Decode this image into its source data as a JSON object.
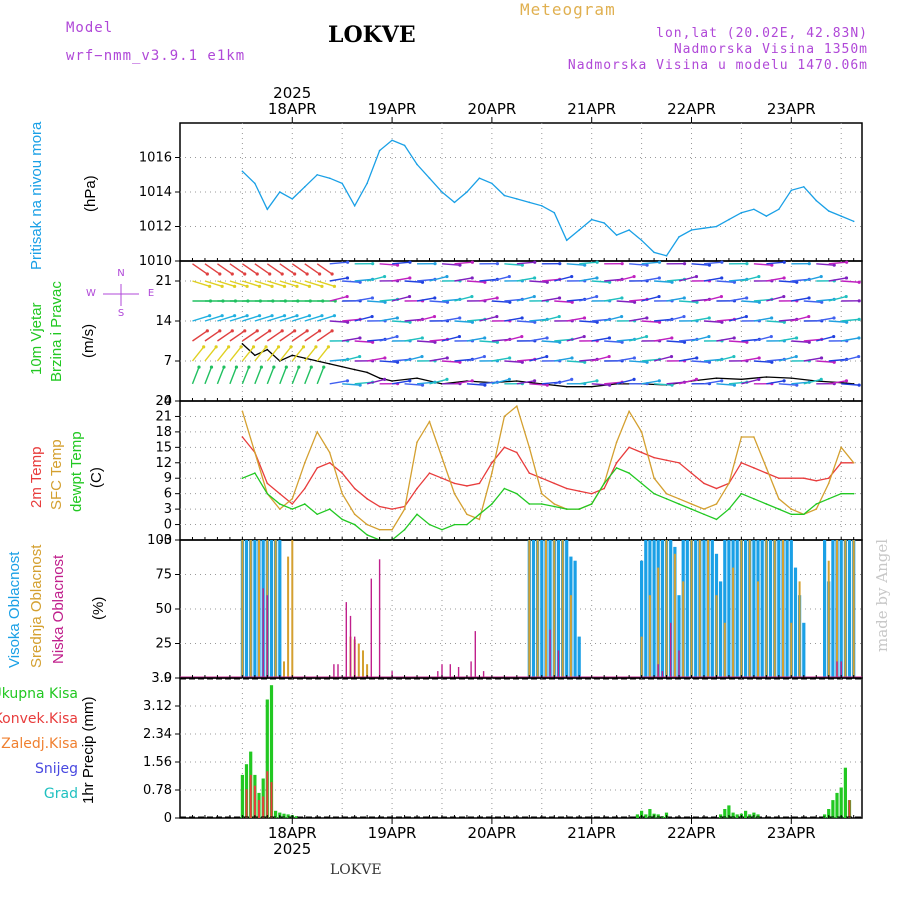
{
  "header": {
    "model_label": "Model",
    "model_name": "wrf−nmm_v3.9.1  e1km",
    "station": "LOKVE",
    "meteogram": "Meteogram",
    "lonlat": "lon,lat (20.02E, 42.83N)",
    "altitude": "Nadmorska Visina 1350m",
    "model_altitude": "Nadmorska Visina u modelu 1470.06m",
    "watermark": "made by Angel",
    "bottom_station": "LOKVE"
  },
  "colors": {
    "pressure": "#1aa0e6",
    "temp2m": "#e83c3c",
    "sfc": "#d4a030",
    "dewpt": "#22c822",
    "high_cloud": "#1aa0e6",
    "mid_cloud": "#d4a030",
    "low_cloud": "#c0208c",
    "total_precip": "#22c822",
    "conv_precip": "#e83c3c",
    "frozen_precip": "#f08030",
    "snow": "#4848e0",
    "hail": "#20c0c0",
    "header_purple": "#b048d8",
    "header_gold": "#e0b050"
  },
  "axis": {
    "year": "2025",
    "dates": [
      "18APR",
      "19APR",
      "20APR",
      "21APR",
      "22APR",
      "23APR"
    ]
  },
  "chart_data": [
    {
      "type": "line",
      "panel": "pressure",
      "title_lines": [
        "Pritisak na nivou mora"
      ],
      "ylabel": "(hPa)",
      "ylim": [
        1010,
        1018
      ],
      "yticks": [
        1010,
        1012,
        1014,
        1016
      ],
      "x_unit": "hours from 2025-04-17 12 UTC",
      "series": [
        {
          "x": [
            0,
            3,
            6,
            9,
            12,
            15,
            18,
            21,
            24,
            27,
            30,
            33,
            36,
            39,
            42,
            45,
            48,
            51,
            54,
            57,
            60,
            63,
            66,
            69,
            72,
            75,
            78,
            81,
            84,
            87,
            90,
            93,
            96,
            99,
            102,
            105,
            108,
            111,
            114,
            117,
            120,
            123,
            126,
            129,
            132,
            135,
            138,
            141,
            144,
            147
          ],
          "values": [
            1015.2,
            1014.5,
            1013.0,
            1014.0,
            1013.6,
            1014.3,
            1015.0,
            1014.8,
            1014.5,
            1013.2,
            1014.5,
            1016.4,
            1017.0,
            1016.7,
            1015.6,
            1014.8,
            1014.0,
            1013.4,
            1014.0,
            1014.8,
            1014.5,
            1013.8,
            1013.6,
            1013.4,
            1013.2,
            1012.8,
            1011.2,
            1011.8,
            1012.4,
            1012.2,
            1011.5,
            1011.8,
            1011.2,
            1010.5,
            1010.3,
            1011.4,
            1011.8,
            1011.9,
            1012.0,
            1012.4,
            1012.8,
            1013.0,
            1012.6,
            1013.0,
            1014.1,
            1014.3,
            1013.5,
            1012.9,
            1012.6,
            1012.3
          ]
        }
      ]
    },
    {
      "type": "line",
      "panel": "wind",
      "title_lines": [
        "10m Vjetar",
        "Brzina i Pravac"
      ],
      "ylabel": "(m/s)",
      "ylim": [
        0,
        24.5
      ],
      "yticks": [
        0,
        7,
        14,
        21
      ],
      "compass": [
        "N",
        "W",
        "E",
        "S"
      ],
      "x_unit": "hours from 2025-04-17 12 UTC",
      "series": [
        {
          "x": [
            0,
            3,
            6,
            9,
            12,
            15,
            18,
            21,
            24,
            27,
            30,
            33,
            36,
            42,
            48,
            54,
            60,
            66,
            72,
            78,
            84,
            90,
            96,
            102,
            108,
            114,
            120,
            126,
            132,
            138,
            144,
            147
          ],
          "values": [
            10,
            8,
            9,
            7,
            8,
            7.5,
            7,
            6.5,
            6,
            5.5,
            5,
            4,
            3.5,
            4,
            3,
            3.5,
            3.2,
            3.5,
            3,
            2.5,
            2.5,
            3,
            3,
            2.8,
            3.5,
            4,
            3.8,
            4.2,
            4.0,
            3.5,
            3.2,
            3.0
          ]
        }
      ]
    },
    {
      "type": "line",
      "panel": "temperature",
      "title_lines": [
        "2m Temp",
        "SFC Temp",
        "dewpt Temp"
      ],
      "ylabel": "(C)",
      "ylim": [
        -3,
        24
      ],
      "yticks": [
        -3,
        0,
        3,
        6,
        9,
        12,
        15,
        18,
        21,
        24
      ],
      "x_unit": "hours from 2025-04-17 12 UTC",
      "series": [
        {
          "name": "2m Temp",
          "x": [
            0,
            3,
            6,
            9,
            12,
            15,
            18,
            21,
            24,
            27,
            30,
            33,
            36,
            39,
            42,
            45,
            48,
            51,
            54,
            57,
            60,
            63,
            66,
            69,
            72,
            75,
            78,
            81,
            84,
            87,
            90,
            93,
            96,
            99,
            102,
            105,
            108,
            111,
            114,
            117,
            120,
            123,
            126,
            129,
            132,
            135,
            138,
            141,
            144,
            147
          ],
          "values": [
            17,
            14,
            8,
            6,
            4,
            7,
            11,
            12,
            10,
            7,
            5,
            3.5,
            3,
            3.5,
            7,
            10,
            9,
            8,
            7.5,
            8,
            12,
            15,
            14,
            10,
            9,
            8,
            7,
            6.5,
            6,
            7,
            12,
            15,
            14,
            13,
            12.5,
            12,
            10,
            8,
            7,
            8,
            12,
            11,
            10,
            9,
            9,
            9,
            8.5,
            9,
            12,
            12
          ]
        },
        {
          "name": "SFC Temp",
          "x": [
            0,
            3,
            6,
            9,
            12,
            15,
            18,
            21,
            24,
            27,
            30,
            33,
            36,
            39,
            42,
            45,
            48,
            51,
            54,
            57,
            60,
            63,
            66,
            69,
            72,
            75,
            78,
            81,
            84,
            87,
            90,
            93,
            96,
            99,
            102,
            105,
            108,
            111,
            114,
            117,
            120,
            123,
            126,
            129,
            132,
            135,
            138,
            141,
            144,
            147
          ],
          "values": [
            22,
            14,
            6,
            3,
            5,
            12,
            18,
            14,
            6,
            2,
            0,
            -1,
            -1,
            3,
            16,
            20,
            13,
            6,
            2,
            1,
            10,
            21,
            23,
            15,
            6,
            4,
            3,
            3,
            4,
            8,
            16,
            22,
            18,
            9,
            6,
            5,
            4,
            3,
            4,
            8,
            17,
            17,
            11,
            5,
            3,
            2,
            3,
            8,
            15,
            12
          ]
        },
        {
          "name": "dewpt Temp",
          "x": [
            0,
            3,
            6,
            9,
            12,
            15,
            18,
            21,
            24,
            27,
            30,
            33,
            36,
            39,
            42,
            45,
            48,
            51,
            54,
            57,
            60,
            63,
            66,
            69,
            72,
            75,
            78,
            81,
            84,
            87,
            90,
            93,
            96,
            99,
            102,
            105,
            108,
            111,
            114,
            117,
            120,
            123,
            126,
            129,
            132,
            135,
            138,
            141,
            144,
            147
          ],
          "values": [
            9,
            10,
            6,
            4,
            3,
            4,
            2,
            3,
            1,
            0,
            -2,
            -3,
            -3,
            -1,
            2,
            0,
            -1,
            0,
            0,
            2,
            4,
            7,
            6,
            4,
            4,
            3.5,
            3,
            3,
            4,
            8,
            11,
            10,
            8,
            6,
            5,
            4,
            3,
            2,
            1,
            3,
            6,
            5,
            4,
            3,
            2,
            2,
            4,
            5,
            6,
            6
          ]
        }
      ]
    },
    {
      "type": "bar",
      "panel": "cloud",
      "title_lines": [
        "Visoka Oblacnost",
        "Srednja Oblacnost",
        "Niska Oblacnost"
      ],
      "ylabel": "(%)",
      "ylim": [
        0,
        100
      ],
      "yticks": [
        0,
        25,
        50,
        75,
        100
      ],
      "x_unit": "hours from 2025-04-17 12 UTC",
      "series": [
        {
          "name": "Visoka Oblacnost",
          "x": [
            0,
            1,
            2,
            3,
            4,
            5,
            6,
            7,
            8,
            9,
            69,
            70,
            71,
            72,
            73,
            74,
            75,
            76,
            77,
            78,
            79,
            80,
            81,
            96,
            97,
            98,
            99,
            100,
            101,
            102,
            103,
            104,
            105,
            106,
            107,
            108,
            109,
            110,
            111,
            112,
            113,
            114,
            115,
            116,
            117,
            118,
            119,
            120,
            121,
            122,
            123,
            124,
            125,
            126,
            127,
            128,
            129,
            130,
            131,
            132,
            133,
            134,
            135,
            140,
            141,
            142,
            143,
            144,
            145,
            146,
            147
          ],
          "values": [
            100,
            100,
            100,
            100,
            100,
            100,
            100,
            100,
            100,
            100,
            100,
            100,
            100,
            100,
            100,
            100,
            100,
            100,
            100,
            100,
            88,
            85,
            30,
            85,
            100,
            100,
            100,
            100,
            100,
            100,
            100,
            95,
            60,
            100,
            100,
            100,
            100,
            100,
            100,
            100,
            100,
            90,
            70,
            100,
            100,
            100,
            100,
            100,
            100,
            100,
            100,
            100,
            100,
            100,
            100,
            100,
            100,
            100,
            100,
            100,
            80,
            60,
            40,
            100,
            70,
            100,
            100,
            100,
            100,
            100,
            100
          ]
        },
        {
          "name": "Srednja Oblacnost",
          "x": [
            0,
            2,
            4,
            6,
            8,
            10,
            11,
            12,
            26,
            27,
            28,
            29,
            30,
            69,
            71,
            73,
            75,
            77,
            79,
            96,
            98,
            100,
            102,
            104,
            106,
            108,
            110,
            112,
            114,
            116,
            118,
            120,
            122,
            124,
            126,
            128,
            130,
            132,
            134,
            141,
            143,
            145,
            147
          ],
          "values": [
            100,
            100,
            100,
            100,
            100,
            12,
            88,
            100,
            30,
            28,
            25,
            20,
            10,
            100,
            100,
            100,
            100,
            100,
            60,
            30,
            60,
            80,
            100,
            90,
            70,
            100,
            100,
            100,
            60,
            40,
            80,
            100,
            100,
            70,
            100,
            100,
            100,
            40,
            70,
            85,
            100,
            100,
            100
          ]
        },
        {
          "name": "Niska Oblacnost",
          "x": [
            5,
            6,
            22,
            23,
            25,
            26,
            27,
            31,
            33,
            36,
            47,
            48,
            50,
            52,
            55,
            56,
            58,
            74,
            76,
            100,
            101,
            103,
            105,
            143,
            144
          ],
          "values": [
            65,
            60,
            10,
            10,
            55,
            45,
            30,
            72,
            86,
            5,
            5,
            10,
            10,
            8,
            12,
            34,
            5,
            35,
            20,
            10,
            5,
            40,
            20,
            12,
            12
          ]
        }
      ]
    },
    {
      "type": "bar",
      "panel": "precip",
      "title_lines": [
        "Ukupna Kisa",
        "Konvek.Kisa",
        "Zaledj.Kisa",
        "Snijeg",
        "Grad"
      ],
      "ylabel": "1hr Precip (mm)",
      "ylim": [
        0,
        3.9
      ],
      "yticks": [
        0,
        0.78,
        1.56,
        2.34,
        3.12,
        3.9
      ],
      "x_unit": "hours from 2025-04-17 12 UTC",
      "series": [
        {
          "name": "Ukupna Kisa",
          "x": [
            0,
            1,
            2,
            3,
            4,
            5,
            6,
            7,
            8,
            9,
            10,
            11,
            12,
            13,
            95,
            96,
            97,
            98,
            99,
            100,
            101,
            102,
            115,
            116,
            117,
            118,
            119,
            120,
            121,
            122,
            123,
            124,
            140,
            141,
            142,
            143,
            144,
            145,
            146
          ],
          "values": [
            1.2,
            1.5,
            1.85,
            1.2,
            0.7,
            1.1,
            3.3,
            3.7,
            0.2,
            0.15,
            0.12,
            0.1,
            0.08,
            0.05,
            0.1,
            0.2,
            0.1,
            0.25,
            0.12,
            0.1,
            0.05,
            0.15,
            0.1,
            0.25,
            0.35,
            0.15,
            0.1,
            0.12,
            0.2,
            0.1,
            0.15,
            0.1,
            0.1,
            0.25,
            0.5,
            0.7,
            0.85,
            1.4,
            0.5
          ]
        },
        {
          "name": "Konvek.Kisa",
          "x": [
            1,
            2,
            3,
            4,
            5,
            6,
            7,
            146
          ],
          "values": [
            0.8,
            1.2,
            0.9,
            0.5,
            0.6,
            1.3,
            1.0,
            0.5
          ]
        }
      ]
    }
  ]
}
